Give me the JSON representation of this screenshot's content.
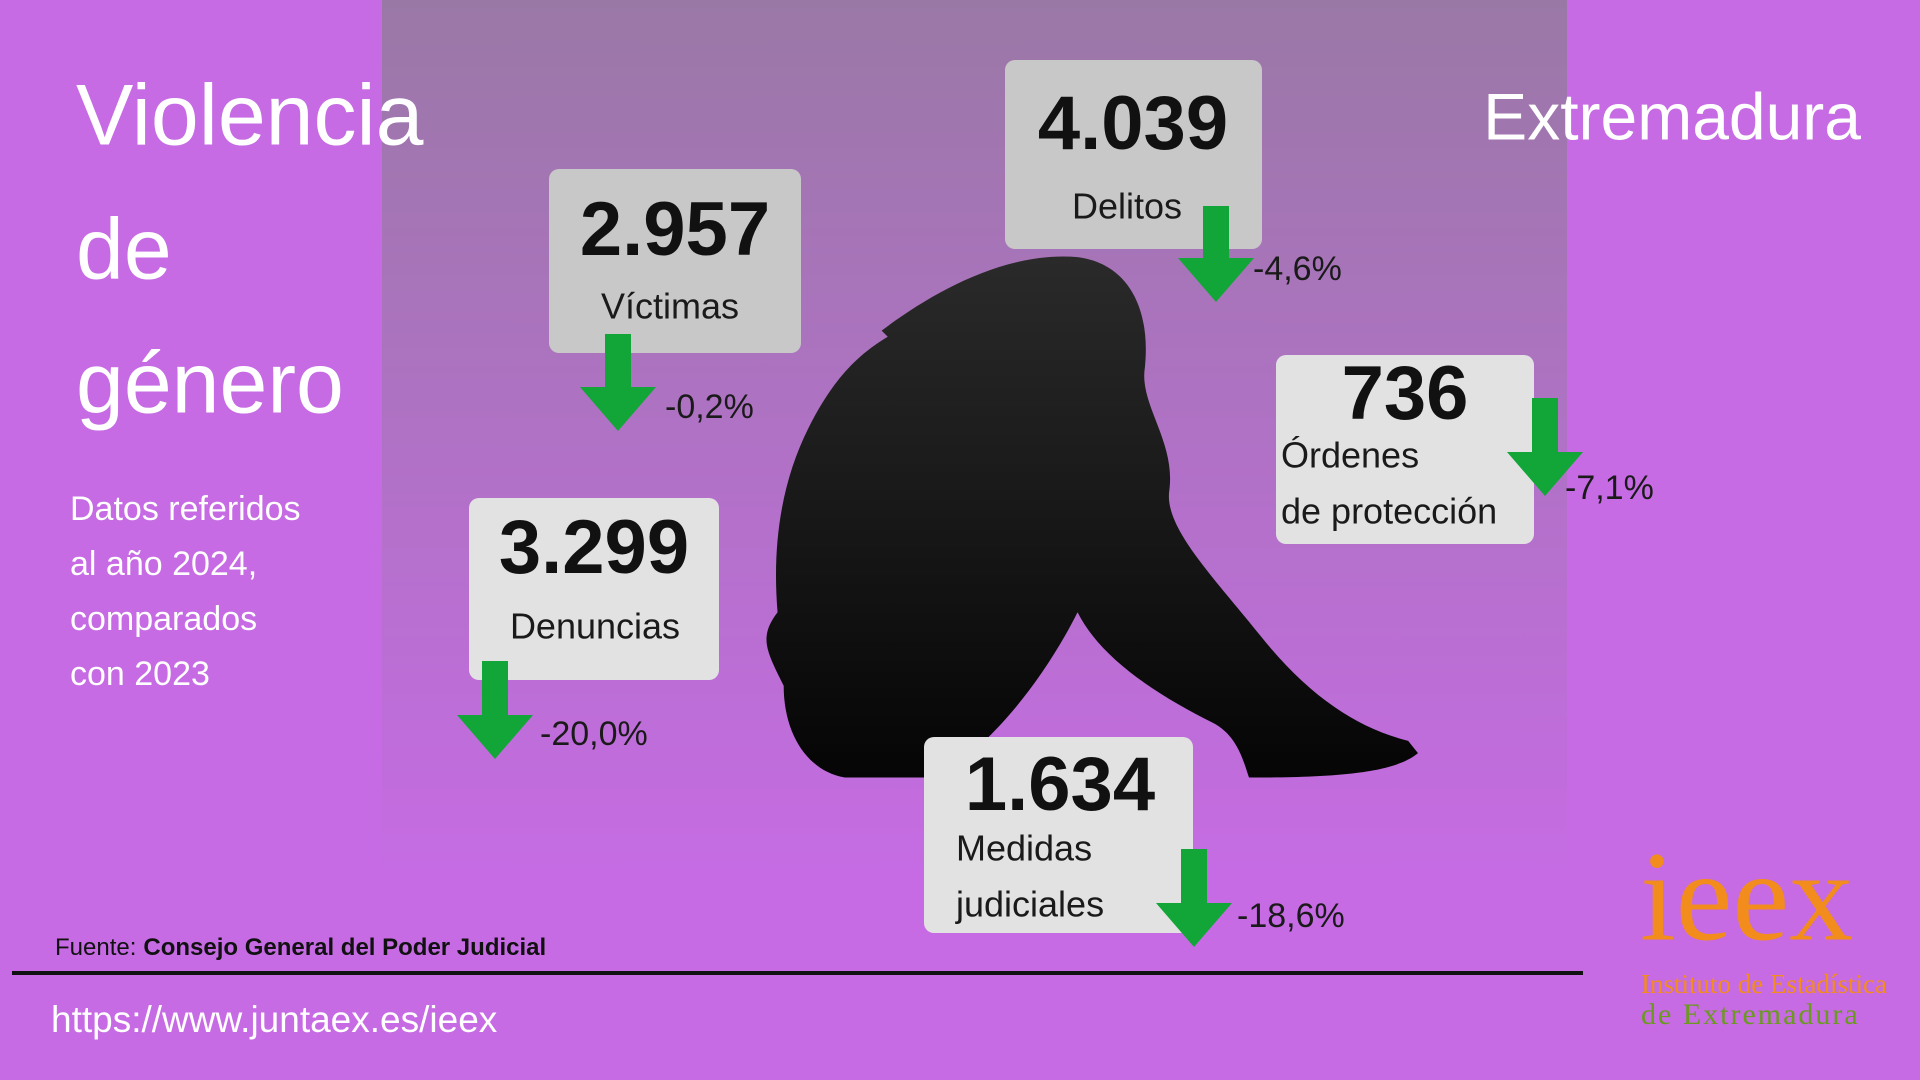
{
  "header": {
    "title": [
      "Violencia",
      "de",
      "género"
    ],
    "region": "Extremadura",
    "subtitle": [
      "Datos referidos",
      "al año 2024,",
      "comparados",
      "con 2023"
    ]
  },
  "stats": [
    {
      "value": "2.957",
      "label": [
        "Víctimas"
      ],
      "change": "-0,2%"
    },
    {
      "value": "4.039",
      "label": [
        "Delitos"
      ],
      "change": "-4,6%"
    },
    {
      "value": "736",
      "label": [
        "Órdenes",
        "de protección"
      ],
      "change": "-7,1%"
    },
    {
      "value": "3.299",
      "label": [
        "Denuncias"
      ],
      "change": "-20,0%"
    },
    {
      "value": "1.634",
      "label": [
        "Medidas",
        "judiciales"
      ],
      "change": "-18,6%"
    }
  ],
  "footer": {
    "source_label": "Fuente:",
    "source": "Consejo General del Poder Judicial",
    "url": "https://www.juntaex.es/ieex"
  },
  "logo": {
    "mark": "ieex",
    "line1": "Instituto de Estadística",
    "line2": "de Extremadura"
  }
}
